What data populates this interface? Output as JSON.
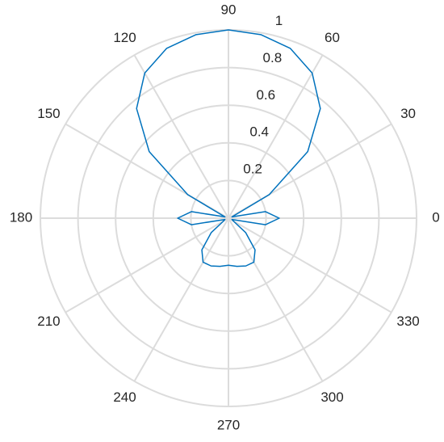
{
  "chart_data": {
    "type": "polar",
    "theta": [
      0,
      10,
      20,
      30,
      40,
      50,
      60,
      70,
      80,
      90,
      100,
      110,
      120,
      130,
      140,
      150,
      160,
      170,
      180,
      190,
      200,
      210,
      220,
      230,
      240,
      250,
      260,
      270,
      280,
      290,
      300,
      310,
      320,
      330,
      340,
      350
    ],
    "values": [
      0.27,
      0.2,
      0.02,
      0.25,
      0.55,
      0.76,
      0.89,
      0.96,
      0.99,
      1,
      0.99,
      0.96,
      0.89,
      0.76,
      0.55,
      0.25,
      0.02,
      0.2,
      0.27,
      0.2,
      0.02,
      0.03,
      0.12,
      0.22,
      0.27,
      0.27,
      0.26,
      0.25,
      0.26,
      0.27,
      0.27,
      0.22,
      0.12,
      0.03,
      0.02,
      0.2
    ],
    "color": "#0072bd",
    "rlim": [
      0,
      1
    ],
    "rticks": [
      {
        "value": 0.2,
        "label": "0.2"
      },
      {
        "value": 0.4,
        "label": "0.4"
      },
      {
        "value": 0.6,
        "label": "0.6"
      },
      {
        "value": 0.8,
        "label": "0.8"
      },
      1
    ],
    "thetaticks": [
      0,
      30,
      60,
      90,
      120,
      150,
      180,
      210,
      240,
      270,
      300,
      330
    ],
    "grid": true
  }
}
